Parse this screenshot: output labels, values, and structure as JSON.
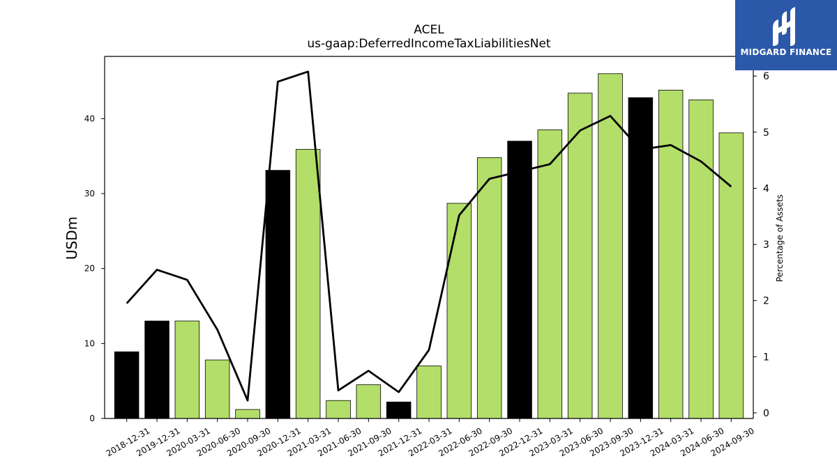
{
  "chart_data": {
    "type": "bar",
    "title": "ACEL",
    "subtitle": "us-gaap:DeferredIncomeTaxLiabilitiesNet",
    "ylabel": "USDm",
    "y2label": "Percentage of Assets",
    "ylim": [
      0,
      48.3
    ],
    "y2lim": [
      -0.1,
      6.35
    ],
    "yticks": [
      0,
      10,
      20,
      30,
      40
    ],
    "y2ticks": [
      0,
      1,
      2,
      3,
      4,
      5,
      6
    ],
    "categories": [
      "2018-12-31",
      "2019-12-31",
      "2020-03-31",
      "2020-06-30",
      "2020-09-30",
      "2020-12-31",
      "2021-03-31",
      "2021-06-30",
      "2021-09-30",
      "2021-12-31",
      "2022-03-31",
      "2022-06-30",
      "2022-09-30",
      "2022-12-31",
      "2023-03-31",
      "2023-06-30",
      "2023-09-30",
      "2023-12-31",
      "2024-03-31",
      "2024-06-30",
      "2024-09-30"
    ],
    "series": [
      {
        "kind": "bar",
        "axis": "left",
        "values": [
          8.9,
          13.0,
          13.0,
          7.8,
          1.2,
          33.1,
          35.9,
          2.4,
          4.5,
          2.2,
          7.0,
          28.7,
          34.8,
          37.0,
          38.5,
          43.4,
          46.0,
          42.8,
          43.8,
          42.5,
          38.1
        ],
        "colors": [
          "#000000",
          "#000000",
          "#b3de69",
          "#b3de69",
          "#b3de69",
          "#000000",
          "#b3de69",
          "#b3de69",
          "#b3de69",
          "#000000",
          "#b3de69",
          "#b3de69",
          "#b3de69",
          "#000000",
          "#b3de69",
          "#b3de69",
          "#b3de69",
          "#000000",
          "#b3de69",
          "#b3de69",
          "#b3de69"
        ]
      },
      {
        "kind": "line",
        "axis": "right",
        "color": "#000000",
        "values": [
          1.95,
          2.55,
          2.37,
          1.48,
          0.22,
          5.9,
          6.08,
          0.4,
          0.75,
          0.37,
          1.12,
          3.52,
          4.17,
          4.3,
          4.43,
          5.03,
          5.29,
          4.69,
          4.77,
          4.48,
          4.03
        ]
      }
    ],
    "grid": false,
    "legend": "none"
  },
  "logo": {
    "text": "MIDGARD FINANCE",
    "mark_icon": "midgard-logo-icon",
    "bg": "#2b58a8"
  },
  "colors": {
    "bar_green": "#b3de69",
    "bar_black": "#000000",
    "line": "#000000"
  }
}
